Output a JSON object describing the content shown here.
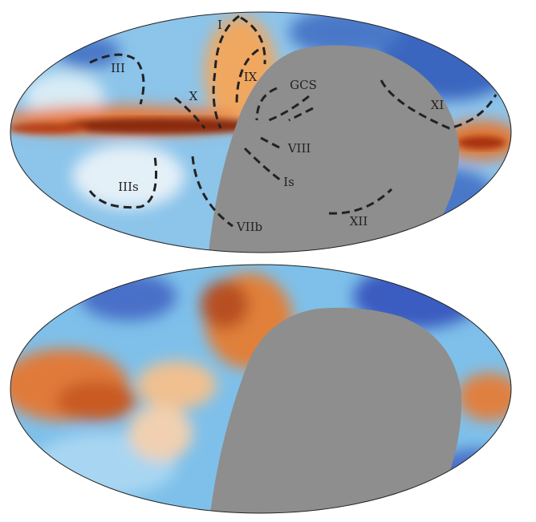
{
  "top_map": {
    "labels": [
      "I",
      "III",
      "X",
      "IX",
      "GCS",
      "XI",
      "VIII",
      "IIIs",
      "Is",
      "XII",
      "VIIb"
    ]
  }
}
